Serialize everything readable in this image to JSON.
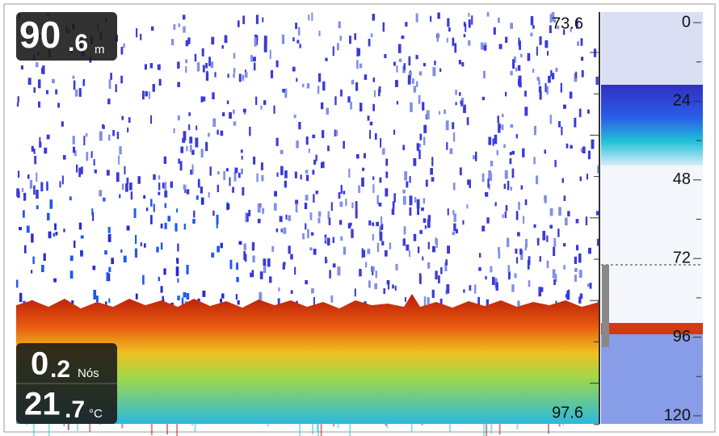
{
  "depth": {
    "whole": "90",
    "fraction": ".6",
    "unit": "m"
  },
  "speed": {
    "whole": "0",
    "fraction": ".2",
    "unit": "Nós"
  },
  "temperature": {
    "whole": "21",
    "fraction": ".7",
    "unit": "°C"
  },
  "zoom_scale": {
    "top": "73.6",
    "bottom": "97.6"
  },
  "depth_scale": [
    "0",
    "24",
    "48",
    "72",
    "96",
    "120"
  ]
}
